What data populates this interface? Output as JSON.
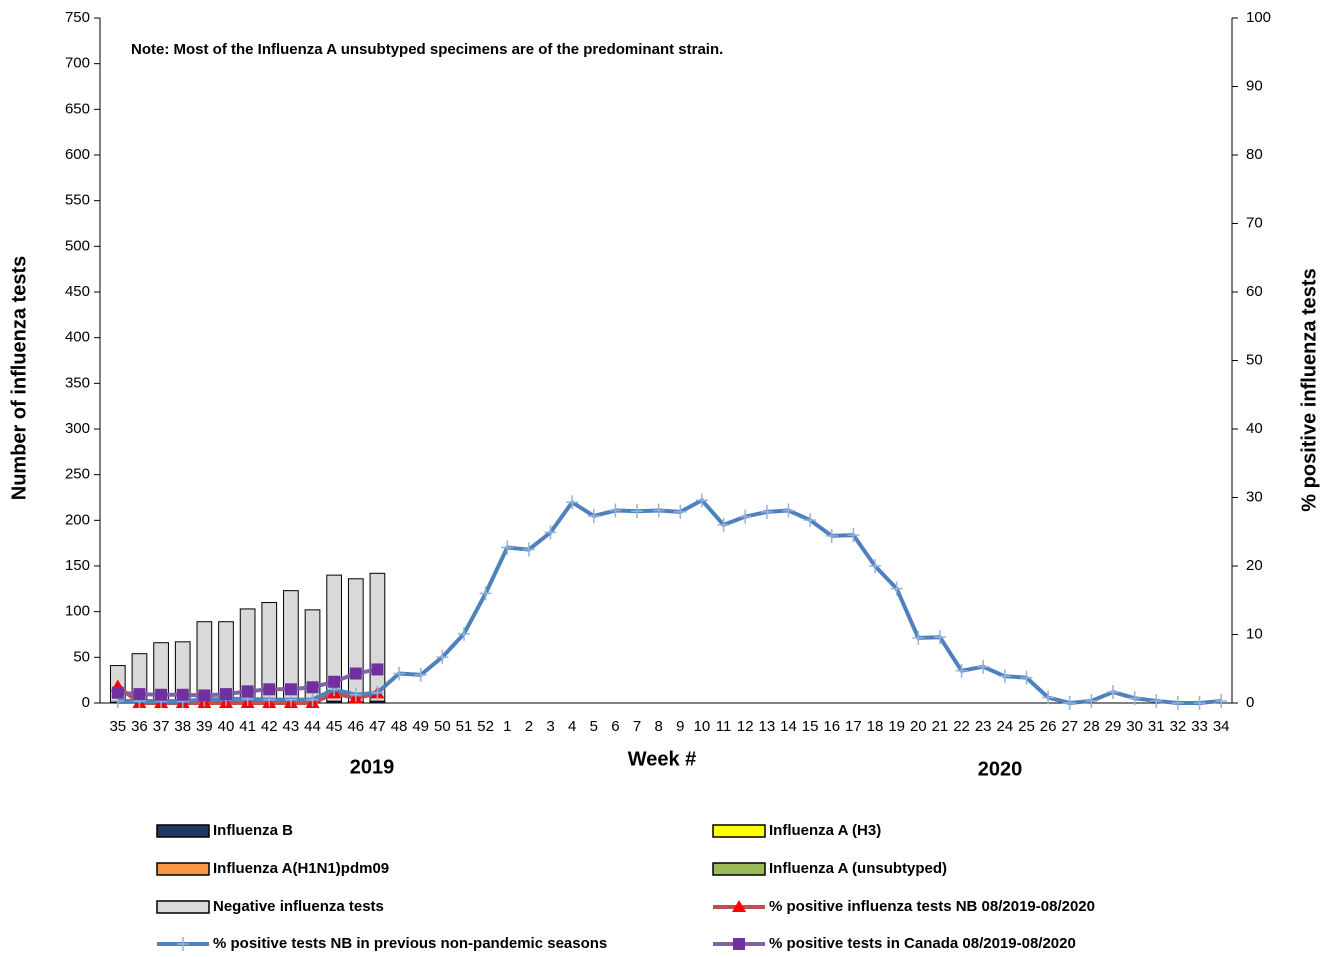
{
  "chart_data": {
    "type": "bar",
    "note": "Note: Most of the  Influenza A unsubtyped specimens are of the predominant strain.",
    "x_label": "Week #",
    "y_label": "Number of influenza tests",
    "y2_label": "% positive influenza tests",
    "year_labels": [
      "2019",
      "2020"
    ],
    "categories": [
      "35",
      "36",
      "37",
      "38",
      "39",
      "40",
      "41",
      "42",
      "43",
      "44",
      "45",
      "46",
      "47",
      "48",
      "49",
      "50",
      "51",
      "52",
      "1",
      "2",
      "3",
      "4",
      "5",
      "6",
      "7",
      "8",
      "9",
      "10",
      "11",
      "12",
      "13",
      "14",
      "15",
      "16",
      "17",
      "18",
      "19",
      "20",
      "21",
      "22",
      "23",
      "24",
      "25",
      "26",
      "27",
      "28",
      "29",
      "30",
      "31",
      "32",
      "33",
      "34"
    ],
    "ylim": [
      0,
      750
    ],
    "yticks": [
      0,
      50,
      100,
      150,
      200,
      250,
      300,
      350,
      400,
      450,
      500,
      550,
      600,
      650,
      700,
      750
    ],
    "y2lim": [
      0,
      100
    ],
    "y2ticks": [
      0,
      10,
      20,
      30,
      40,
      50,
      60,
      70,
      80,
      90,
      100
    ],
    "series": [
      {
        "name": "Influenza B",
        "type": "bar",
        "color": "#1f3864",
        "values": [
          0,
          0,
          0,
          0,
          0,
          0,
          0,
          0,
          0,
          0,
          2,
          1,
          2,
          null,
          null,
          null,
          null,
          null,
          null,
          null,
          null,
          null,
          null,
          null,
          null,
          null,
          null,
          null,
          null,
          null,
          null,
          null,
          null,
          null,
          null,
          null,
          null,
          null,
          null,
          null,
          null,
          null,
          null,
          null,
          null,
          null,
          null,
          null,
          null,
          null,
          null,
          null
        ]
      },
      {
        "name": "Influenza A (H3)",
        "type": "bar",
        "color": "#ffff00",
        "values": [
          0,
          0,
          0,
          0,
          0,
          0,
          0,
          0,
          0,
          0,
          0,
          0,
          0,
          null,
          null,
          null,
          null,
          null,
          null,
          null,
          null,
          null,
          null,
          null,
          null,
          null,
          null,
          null,
          null,
          null,
          null,
          null,
          null,
          null,
          null,
          null,
          null,
          null,
          null,
          null,
          null,
          null,
          null,
          null,
          null,
          null,
          null,
          null,
          null,
          null,
          null,
          null
        ]
      },
      {
        "name": "Influenza A(H1N1)pdm09",
        "type": "bar",
        "color": "#f79646",
        "values": [
          0,
          0,
          0,
          0,
          0,
          0,
          0,
          0,
          0,
          0,
          0,
          0,
          0,
          null,
          null,
          null,
          null,
          null,
          null,
          null,
          null,
          null,
          null,
          null,
          null,
          null,
          null,
          null,
          null,
          null,
          null,
          null,
          null,
          null,
          null,
          null,
          null,
          null,
          null,
          null,
          null,
          null,
          null,
          null,
          null,
          null,
          null,
          null,
          null,
          null,
          null,
          null
        ]
      },
      {
        "name": "Influenza A (unsubtyped)",
        "type": "bar",
        "color": "#9bbb59",
        "values": [
          1,
          0,
          0,
          0,
          0,
          0,
          0,
          0,
          0,
          0,
          0,
          0,
          0,
          null,
          null,
          null,
          null,
          null,
          null,
          null,
          null,
          null,
          null,
          null,
          null,
          null,
          null,
          null,
          null,
          null,
          null,
          null,
          null,
          null,
          null,
          null,
          null,
          null,
          null,
          null,
          null,
          null,
          null,
          null,
          null,
          null,
          null,
          null,
          null,
          null,
          null,
          null
        ]
      },
      {
        "name": "Negative influenza tests",
        "type": "bar",
        "color": "#d9d9d9",
        "values": [
          40,
          54,
          66,
          67,
          89,
          89,
          103,
          110,
          123,
          102,
          138,
          135,
          140,
          null,
          null,
          null,
          null,
          null,
          null,
          null,
          null,
          null,
          null,
          null,
          null,
          null,
          null,
          null,
          null,
          null,
          null,
          null,
          null,
          null,
          null,
          null,
          null,
          null,
          null,
          null,
          null,
          null,
          null,
          null,
          null,
          null,
          null,
          null,
          null,
          null,
          null,
          null
        ]
      },
      {
        "name": "% positive influenza tests NB 08/2019-08/2020",
        "type": "line",
        "axis": "y2",
        "color": "#c0504d",
        "marker": "triangle",
        "marker_color": "#ff0000",
        "values": [
          2.4,
          0,
          0,
          0,
          0,
          0,
          0,
          0,
          0,
          0,
          1.4,
          0.7,
          1.4,
          null,
          null,
          null,
          null,
          null,
          null,
          null,
          null,
          null,
          null,
          null,
          null,
          null,
          null,
          null,
          null,
          null,
          null,
          null,
          null,
          null,
          null,
          null,
          null,
          null,
          null,
          null,
          null,
          null,
          null,
          null,
          null,
          null,
          null,
          null,
          null,
          null,
          null,
          null
        ]
      },
      {
        "name": "% positive tests NB in previous non-pandemic seasons",
        "type": "line",
        "axis": "y2",
        "color": "#4f81bd",
        "marker": "star",
        "marker_color": "#95b3d7",
        "values": [
          0.3,
          0.3,
          0.3,
          0.3,
          0.5,
          0.6,
          0.6,
          0.5,
          0.5,
          0.5,
          2.0,
          1.2,
          1.5,
          4.3,
          4.1,
          6.7,
          10.1,
          16,
          22.7,
          22.4,
          24.9,
          29.3,
          27.3,
          28.1,
          28,
          28.1,
          27.9,
          29.6,
          26,
          27.2,
          27.9,
          28.1,
          26.7,
          24.4,
          24.5,
          20,
          16.7,
          9.5,
          9.6,
          4.7,
          5.3,
          3.9,
          3.7,
          0.8,
          0,
          0.3,
          1.6,
          0.7,
          0.3,
          0,
          0,
          0.3
        ]
      },
      {
        "name": "% positive tests  in Canada 08/2019-08/2020",
        "type": "line",
        "axis": "y2",
        "color": "#8064a2",
        "marker": "square",
        "marker_color": "#7030a0",
        "values": [
          1.5,
          1.3,
          1.2,
          1.2,
          1.1,
          1.3,
          1.7,
          2.0,
          2.0,
          2.3,
          3.1,
          4.3,
          4.9,
          null,
          null,
          null,
          null,
          null,
          null,
          null,
          null,
          null,
          null,
          null,
          null,
          null,
          null,
          null,
          null,
          null,
          null,
          null,
          null,
          null,
          null,
          null,
          null,
          null,
          null,
          null,
          null,
          null,
          null,
          null,
          null,
          null,
          null,
          null,
          null,
          null,
          null,
          null
        ]
      }
    ]
  }
}
